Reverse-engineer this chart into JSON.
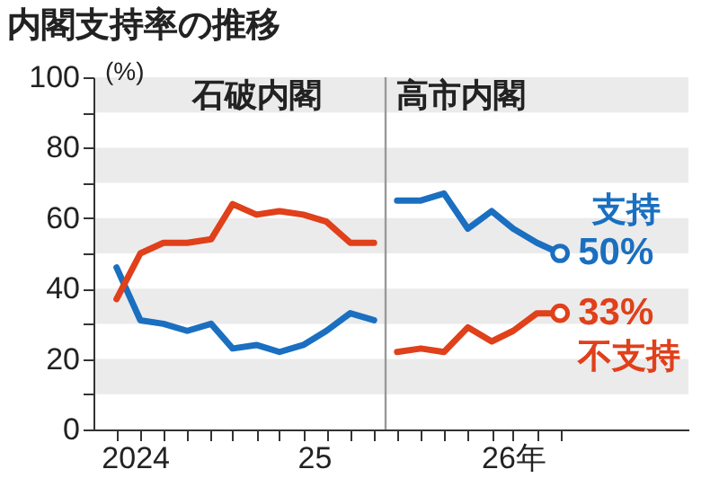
{
  "chart_data": {
    "type": "line",
    "title": "内閣支持率の推移",
    "ylabel": "(%)",
    "xlim": [
      "2024-09",
      "2026-10-15"
    ],
    "xticks": [
      {
        "value": "2024-10",
        "label": null
      },
      {
        "value": "2024-11",
        "label": null
      },
      {
        "value": "2024-12",
        "label": null
      },
      {
        "value": "2025-01",
        "label": null
      },
      {
        "value": "2025-02",
        "label": null
      },
      {
        "value": "2025-03",
        "label": null
      },
      {
        "value": "2025-04",
        "label": null
      },
      {
        "value": "2025-05",
        "label": null
      },
      {
        "value": "2025-06",
        "label": null
      },
      {
        "value": "2025-07",
        "label": null
      },
      {
        "value": "2025-08",
        "label": null
      },
      {
        "value": "2025-09",
        "label": null
      },
      {
        "value": "2025-10",
        "label": null
      },
      {
        "value": "2025-11",
        "label": null
      },
      {
        "value": "2025-12",
        "label": null
      },
      {
        "value": "2026-01",
        "label": null
      },
      {
        "value": "2026-02",
        "label": null
      },
      {
        "value": "2026-03",
        "label": null
      },
      {
        "value": "2026-04",
        "label": null
      },
      {
        "value": "2026-05",
        "label": null
      },
      {
        "value": "2024-10-25",
        "label": "2024"
      },
      {
        "value": "2025-06-15",
        "label": "25"
      },
      {
        "value": "2026-03-01",
        "label": "26年"
      }
    ],
    "ylim": [
      0,
      100
    ],
    "yticks": [
      0,
      {
        "value": 10,
        "label": null
      },
      20,
      {
        "value": 30,
        "label": null
      },
      40,
      {
        "value": 50,
        "label": null
      },
      60,
      {
        "value": 70,
        "label": null
      },
      80,
      {
        "value": 90,
        "label": null
      },
      100
    ],
    "bands": [
      {
        "axis": "y",
        "from": 10,
        "to": 20,
        "color": "#ebebeb"
      },
      {
        "axis": "y",
        "from": 30,
        "to": 40,
        "color": "#ebebeb"
      },
      {
        "axis": "y",
        "from": 50,
        "to": 60,
        "color": "#ebebeb"
      },
      {
        "axis": "y",
        "from": 70,
        "to": 80,
        "color": "#ebebeb"
      },
      {
        "axis": "y",
        "from": 90,
        "to": 100,
        "color": "#ebebeb"
      }
    ],
    "ref_lines": [
      {
        "axis": "x",
        "value": "2025-09-16",
        "color": "#999999"
      }
    ],
    "annotations": [
      "石破内閣",
      "高市内閣"
    ],
    "series": [
      {
        "color": "#1a6fc0",
        "x": [
          "2024-10",
          "2024-11",
          "2024-12",
          "2025-01",
          "2025-02",
          "2025-03",
          "2025-04",
          "2025-05",
          "2025-06",
          "2025-07",
          "2025-08",
          "2025-09"
        ],
        "values": [
          46,
          31,
          30,
          28,
          30,
          23,
          24,
          22,
          24,
          28,
          33,
          31
        ]
      },
      {
        "color": "#e0401a",
        "x": [
          "2024-10",
          "2024-11",
          "2024-12",
          "2025-01",
          "2025-02",
          "2025-03",
          "2025-04",
          "2025-05",
          "2025-06",
          "2025-07",
          "2025-08",
          "2025-09"
        ],
        "values": [
          37,
          50,
          53,
          53,
          54,
          64,
          61,
          62,
          61,
          59,
          53,
          53
        ]
      },
      {
        "name": "支持",
        "color": "#1a6fc0",
        "x": [
          "2025-10",
          "2025-11",
          "2025-12",
          "2026-01",
          "2026-02",
          "2026-03",
          "2026-04",
          "2026-05"
        ],
        "values": [
          65,
          65,
          67,
          57,
          62,
          57,
          53,
          50
        ],
        "value_labels": [
          null,
          null,
          null,
          null,
          null,
          null,
          null,
          "50%"
        ]
      },
      {
        "name": "不支持",
        "color": "#e0401a",
        "x": [
          "2025-10",
          "2025-11",
          "2025-12",
          "2026-01",
          "2026-02",
          "2026-03",
          "2026-04",
          "2026-05"
        ],
        "values": [
          22,
          23,
          22,
          29,
          25,
          28,
          33,
          33
        ],
        "value_labels": [
          null,
          null,
          null,
          null,
          null,
          null,
          null,
          "33%"
        ]
      }
    ]
  }
}
